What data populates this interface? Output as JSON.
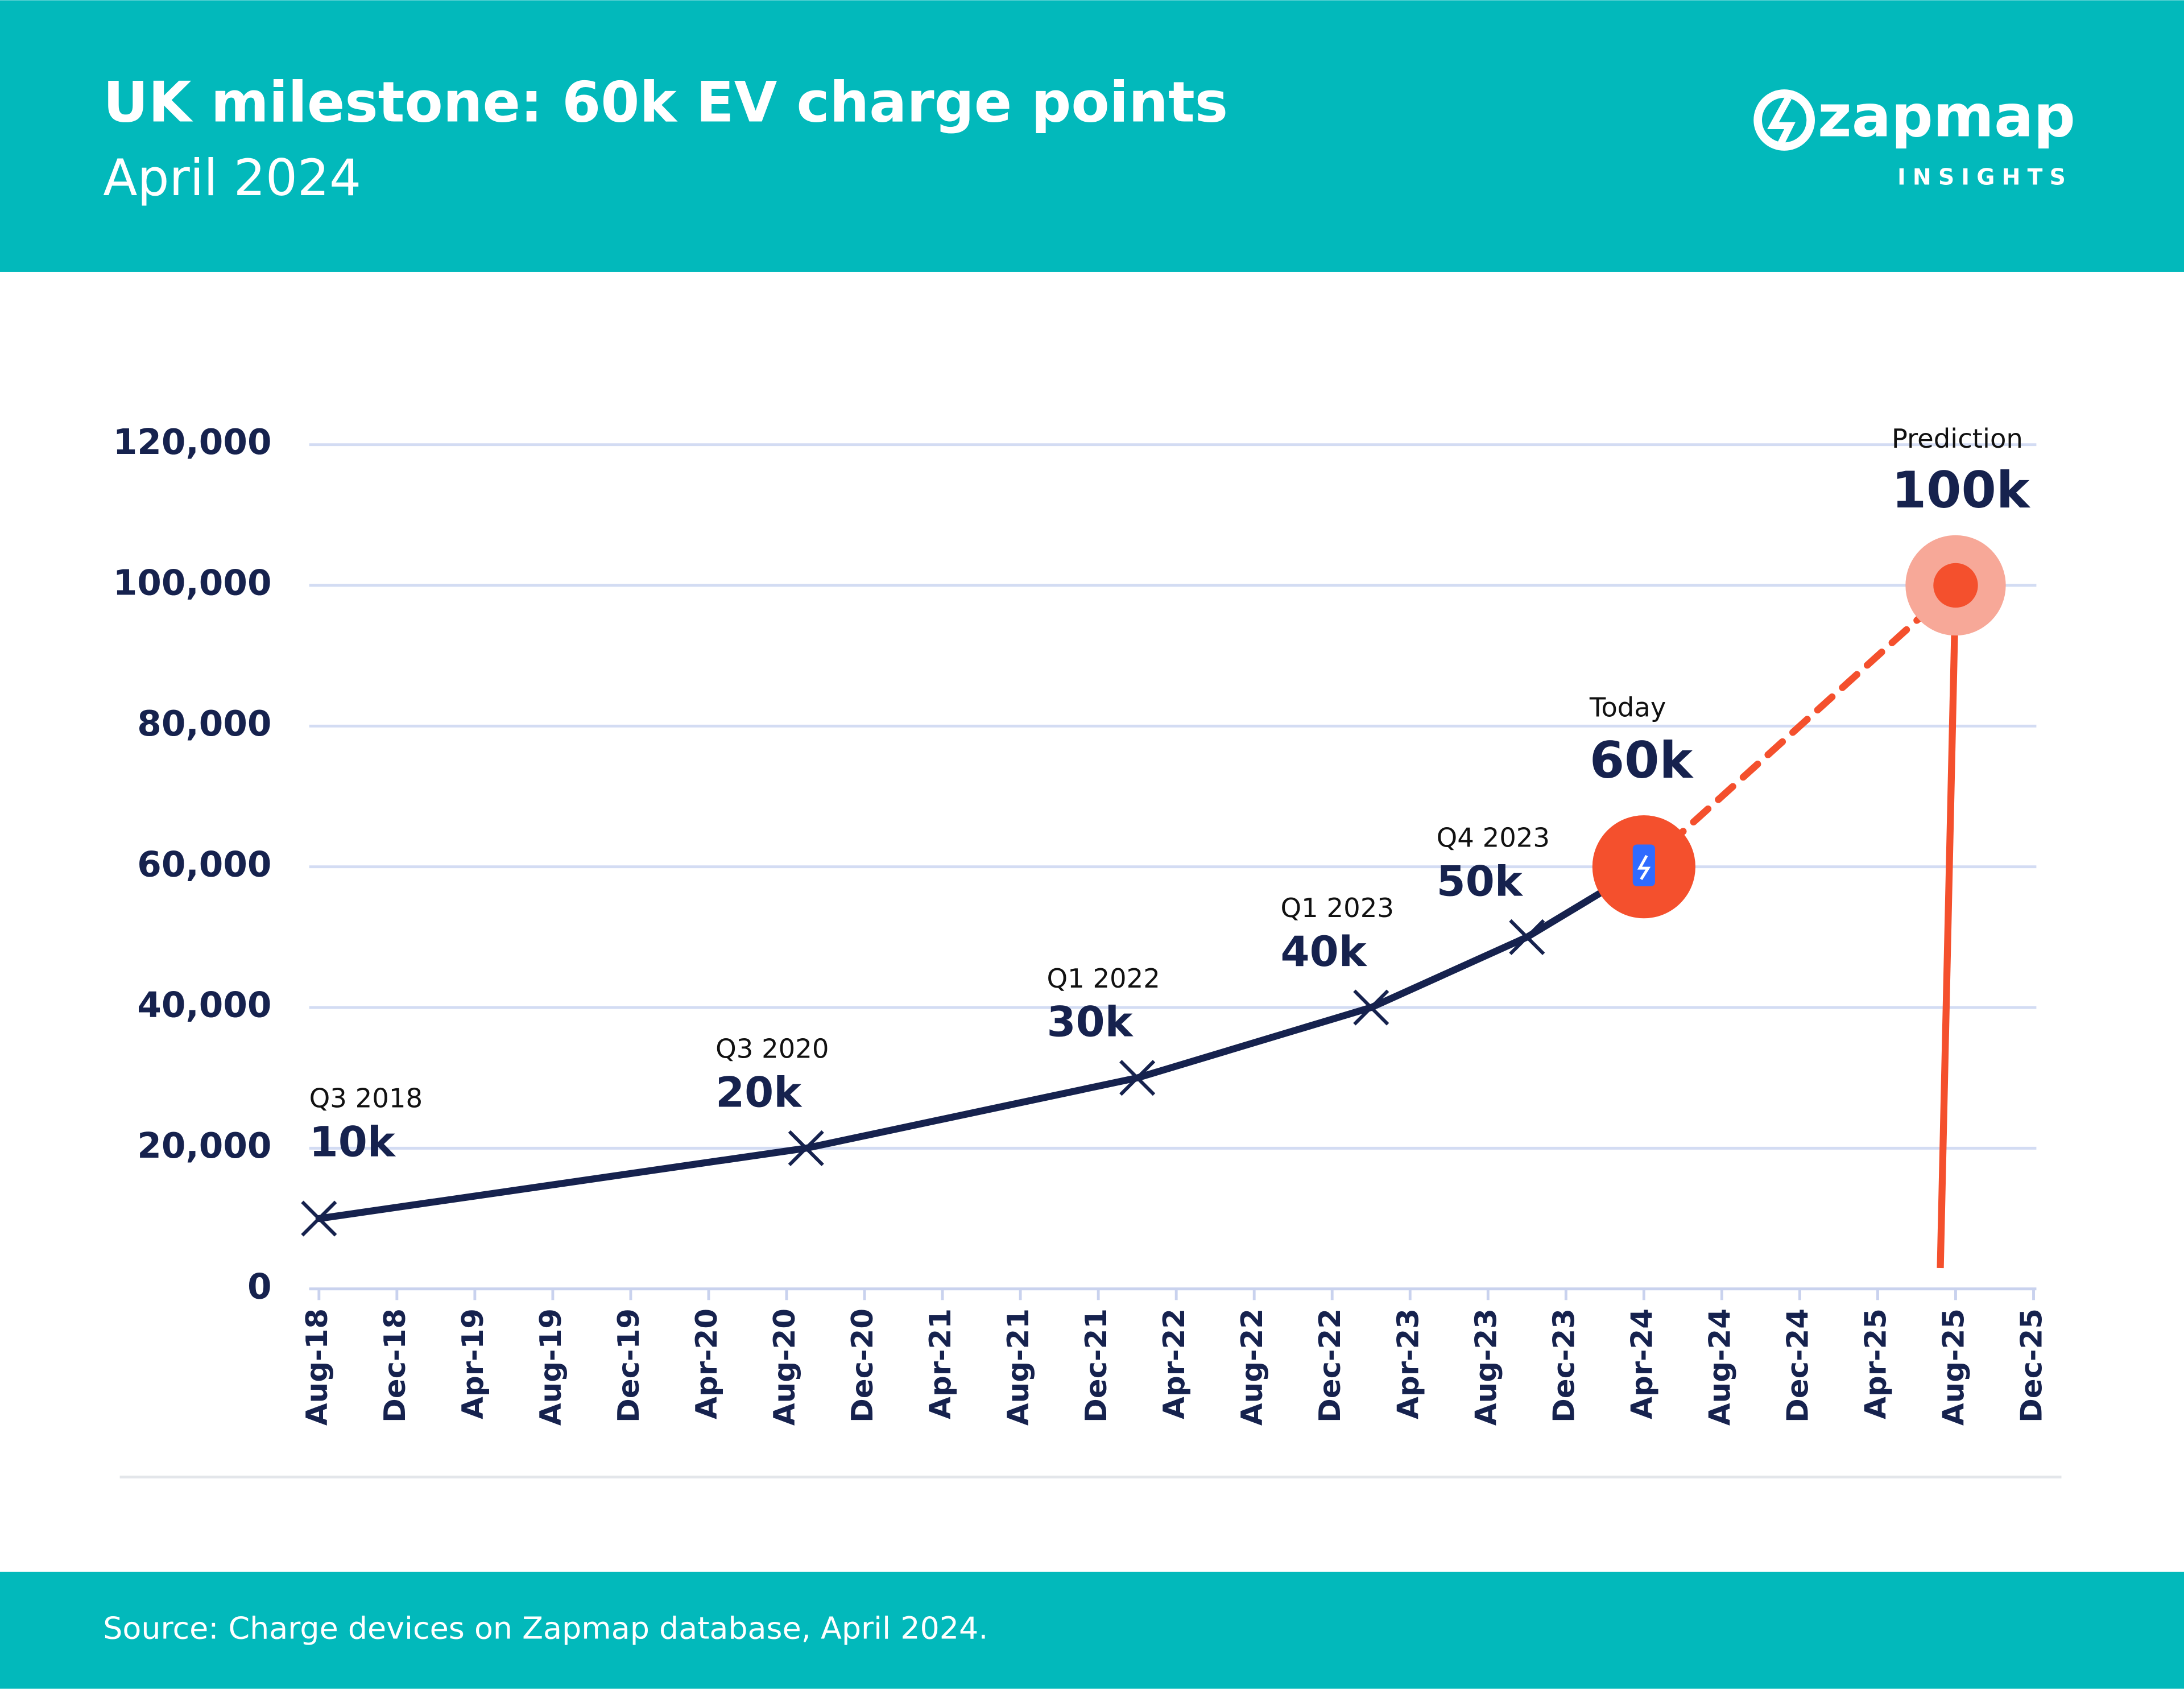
{
  "brand": {
    "name": "zapmap",
    "tagline": "INSIGHTS"
  },
  "chart_data": {
    "type": "line",
    "title": "UK milestone: 60k EV charge points",
    "subtitle": "April 2024",
    "source": "Source: Charge devices on Zapmap database, April 2024.",
    "x": [
      0,
      25,
      42,
      54,
      62,
      68,
      84
    ],
    "xlim": [
      0,
      88
    ],
    "xticks": [
      {
        "value": 0,
        "label": "Aug-18"
      },
      {
        "value": 4,
        "label": "Dec-18"
      },
      {
        "value": 8,
        "label": "Apr-19"
      },
      {
        "value": 12,
        "label": "Aug-19"
      },
      {
        "value": 16,
        "label": "Dec-19"
      },
      {
        "value": 20,
        "label": "Apr-20"
      },
      {
        "value": 24,
        "label": "Aug-20"
      },
      {
        "value": 28,
        "label": "Dec-20"
      },
      {
        "value": 32,
        "label": "Apr-21"
      },
      {
        "value": 36,
        "label": "Aug-21"
      },
      {
        "value": 40,
        "label": "Dec-21"
      },
      {
        "value": 44,
        "label": "Apr-22"
      },
      {
        "value": 48,
        "label": "Aug-22"
      },
      {
        "value": 52,
        "label": "Dec-22"
      },
      {
        "value": 56,
        "label": "Apr-23"
      },
      {
        "value": 60,
        "label": "Aug-23"
      },
      {
        "value": 64,
        "label": "Dec-23"
      },
      {
        "value": 68,
        "label": "Apr-24"
      },
      {
        "value": 72,
        "label": "Aug-24"
      },
      {
        "value": 76,
        "label": "Dec-24"
      },
      {
        "value": 80,
        "label": "Apr-25"
      },
      {
        "value": 84,
        "label": "Aug-25"
      },
      {
        "value": 88,
        "label": "Dec-25"
      }
    ],
    "ylim": [
      0,
      120000
    ],
    "yticks": [
      0,
      {
        "value": 20000,
        "label": "20,000"
      },
      {
        "value": 40000,
        "label": "40,000"
      },
      {
        "value": 60000,
        "label": "60,000"
      },
      {
        "value": 80000,
        "label": "80,000"
      },
      {
        "value": 100000,
        "label": "100,000"
      },
      {
        "value": 120000,
        "label": "120,000"
      }
    ],
    "grid": true,
    "series": [
      {
        "color": "#16224e",
        "dashed": false,
        "values": [
          10000,
          20000,
          30000,
          40000,
          50000,
          60000,
          null
        ],
        "point_labels": [
          "Q3 2018",
          "Q3 2020",
          "Q1 2022",
          "Q1 2023",
          "Q4 2023",
          "Today",
          null
        ],
        "value_labels": [
          "10k",
          "20k",
          "30k",
          "40k",
          "50k",
          "60k",
          null
        ]
      },
      {
        "color": "#f4502d",
        "dashed": true,
        "values": [
          null,
          null,
          null,
          null,
          null,
          60000,
          100000
        ],
        "point_labels": [
          null,
          null,
          null,
          null,
          null,
          null,
          "Prediction"
        ],
        "value_labels": [
          null,
          null,
          null,
          null,
          null,
          null,
          "100k"
        ]
      }
    ]
  }
}
